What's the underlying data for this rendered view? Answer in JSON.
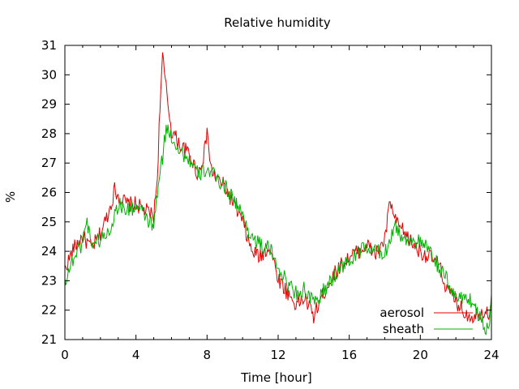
{
  "chart_data": {
    "type": "line",
    "title": "Relative humidity",
    "xlabel": "Time [hour]",
    "ylabel": "%",
    "xlim": [
      0,
      24
    ],
    "ylim": [
      21,
      31
    ],
    "xticks": [
      0,
      4,
      8,
      12,
      16,
      20,
      24
    ],
    "yticks": [
      21,
      22,
      23,
      24,
      25,
      26,
      27,
      28,
      29,
      30,
      31
    ],
    "grid": false,
    "legend_position": "bottom-right",
    "series": [
      {
        "name": "aerosol",
        "color": "#e00000",
        "x": [
          0,
          0.5,
          1,
          1.5,
          2,
          2.5,
          2.8,
          3,
          3.5,
          4,
          4.5,
          5,
          5.2,
          5.35,
          5.5,
          5.7,
          6,
          6.5,
          7,
          7.5,
          7.9,
          8,
          8.2,
          8.5,
          9,
          9.5,
          10,
          10.5,
          11,
          11.5,
          12,
          12.5,
          13,
          13.5,
          14,
          14.5,
          15,
          15.5,
          16,
          16.5,
          17,
          17.5,
          18,
          18.3,
          18.6,
          19,
          19.5,
          20,
          20.5,
          21,
          21.5,
          22,
          22.5,
          23,
          23.5,
          24
        ],
        "y": [
          23.4,
          24.1,
          24.5,
          24.1,
          24.6,
          25.4,
          26.1,
          25.9,
          25.6,
          25.6,
          25.4,
          25.2,
          26.5,
          29.0,
          30.6,
          29.5,
          28.1,
          27.6,
          27.3,
          26.6,
          27.5,
          28.2,
          26.8,
          26.5,
          26.2,
          25.6,
          25.0,
          24.0,
          23.8,
          24.2,
          23.1,
          22.6,
          22.2,
          22.4,
          21.8,
          22.5,
          23.1,
          23.5,
          23.8,
          24.0,
          24.2,
          23.9,
          24.4,
          25.7,
          25.0,
          24.7,
          24.3,
          24.0,
          23.8,
          23.6,
          22.7,
          22.3,
          21.9,
          21.8,
          22.0,
          21.9
        ]
      },
      {
        "name": "sheath",
        "color": "#00b000",
        "x": [
          0,
          0.5,
          1,
          1.2,
          1.5,
          2,
          2.5,
          3,
          3.5,
          4,
          4.5,
          5,
          5.2,
          5.5,
          5.7,
          6,
          6.5,
          7,
          7.5,
          8,
          8.5,
          9,
          9.5,
          10,
          10.5,
          11,
          11.5,
          12,
          12.5,
          13,
          13.5,
          14,
          14.5,
          15,
          15.5,
          16,
          16.5,
          17,
          17.5,
          18,
          18.3,
          18.6,
          19,
          19.5,
          20,
          20.5,
          21,
          21.5,
          22,
          22.5,
          23,
          23.5,
          23.8,
          24
        ],
        "y": [
          23.0,
          23.8,
          24.3,
          25.1,
          24.3,
          24.4,
          24.7,
          25.6,
          25.4,
          25.5,
          25.2,
          24.8,
          26.0,
          27.2,
          28.2,
          27.9,
          27.4,
          27.1,
          26.6,
          26.8,
          26.5,
          26.2,
          25.8,
          25.2,
          24.5,
          24.2,
          24.1,
          23.5,
          22.9,
          22.6,
          22.7,
          22.2,
          22.6,
          23.0,
          23.5,
          23.6,
          24.0,
          24.1,
          24.0,
          23.9,
          24.5,
          24.9,
          24.4,
          24.4,
          24.3,
          24.0,
          23.5,
          23.0,
          22.4,
          22.5,
          22.2,
          21.6,
          21.3,
          22.3
        ]
      }
    ]
  }
}
